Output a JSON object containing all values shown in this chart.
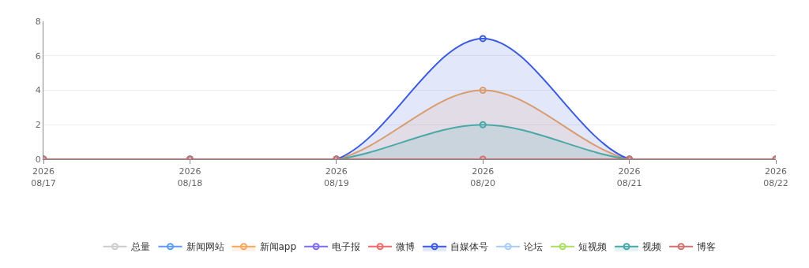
{
  "chart_data": {
    "type": "line",
    "x": [
      "2026-08-17",
      "2026-08-18",
      "2026-08-19",
      "2026-08-20",
      "2026-08-21",
      "2026-08-22"
    ],
    "xlim": [
      "2026-08-17",
      "2026-08-22"
    ],
    "xticks": [
      {
        "value": "2026-08-17",
        "label": "2026\n08/17"
      },
      {
        "value": "2026-08-18",
        "label": "2026\n08/18"
      },
      {
        "value": "2026-08-19",
        "label": "2026\n08/19"
      },
      {
        "value": "2026-08-20",
        "label": "2026\n08/20"
      },
      {
        "value": "2026-08-21",
        "label": "2026\n08/21"
      },
      {
        "value": "2026-08-22",
        "label": "2026\n08/22"
      }
    ],
    "ylim": [
      0,
      8
    ],
    "yticks": [
      0,
      2,
      4,
      6,
      8
    ],
    "grid": "y",
    "legend": "bottom",
    "marker": "circle",
    "line_style": "solid",
    "series": [
      {
        "name": "总量",
        "color": "#cccccc",
        "values": [
          null,
          null,
          null,
          null,
          null,
          null
        ]
      },
      {
        "name": "新闻网站",
        "color": "#5b9bf0",
        "values": [
          null,
          null,
          null,
          null,
          null,
          null
        ]
      },
      {
        "name": "新闻app",
        "color": "#f5a75b",
        "type": "area",
        "values": [
          0,
          0,
          0,
          4,
          0,
          0
        ]
      },
      {
        "name": "电子报",
        "color": "#7b6cf0",
        "values": [
          null,
          null,
          null,
          null,
          null,
          null
        ]
      },
      {
        "name": "微博",
        "color": "#f06a6a",
        "values": [
          null,
          null,
          null,
          null,
          null,
          null
        ]
      },
      {
        "color": "#4cc46a",
        "values": [
          null,
          null,
          null,
          null,
          null,
          null
        ]
      },
      {
        "name": "自媒体号",
        "color": "#3b5be0",
        "type": "area",
        "values": [
          0,
          0,
          0,
          7,
          0,
          0
        ]
      },
      {
        "name": "论坛",
        "color": "#a8cdf5",
        "values": [
          null,
          null,
          null,
          null,
          null,
          null
        ]
      },
      {
        "name": "短视频",
        "color": "#a8e063",
        "values": [
          null,
          null,
          null,
          null,
          null,
          null
        ]
      },
      {
        "name": "视频",
        "color": "#4aa8a8",
        "type": "area",
        "values": [
          0,
          0,
          0,
          2,
          0,
          0
        ]
      },
      {
        "name": "博客",
        "color": "#d07070",
        "values": [
          0,
          0,
          0,
          0,
          0,
          0
        ]
      }
    ]
  }
}
